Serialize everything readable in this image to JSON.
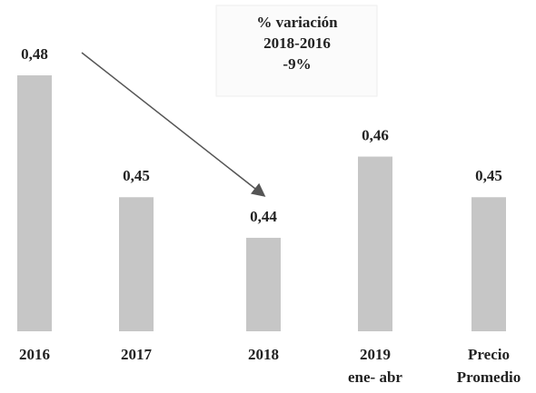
{
  "chart_data": {
    "type": "bar",
    "categories": [
      "2016",
      "2017",
      "2018",
      "2019\nene- abr",
      "Precio\nPromedio"
    ],
    "values": [
      0.48,
      0.45,
      0.44,
      0.46,
      0.45
    ],
    "value_labels": [
      "0,48",
      "0,45",
      "0,44",
      "0,46",
      "0,45"
    ],
    "color": "#c6c6c6",
    "ylim": [
      0.417,
      0.48
    ],
    "annotation": [
      "% variación",
      "2018-2016",
      "-9%"
    ]
  }
}
